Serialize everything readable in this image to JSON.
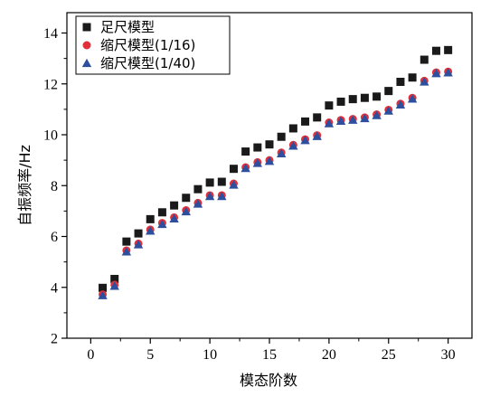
{
  "chart_data": {
    "type": "scatter",
    "xlabel": "模态阶数",
    "ylabel": "自振频率/Hz",
    "xlim": [
      -2,
      32
    ],
    "ylim": [
      2,
      14.8
    ],
    "xticks": [
      0,
      5,
      10,
      15,
      20,
      25,
      30
    ],
    "yticks": [
      2,
      4,
      6,
      8,
      10,
      12,
      14
    ],
    "grid": false,
    "legend_position": "top-left",
    "x": [
      1,
      2,
      3,
      4,
      5,
      6,
      7,
      8,
      9,
      10,
      11,
      12,
      13,
      14,
      15,
      16,
      17,
      18,
      19,
      20,
      21,
      22,
      23,
      24,
      25,
      26,
      27,
      28,
      29,
      30
    ],
    "series": [
      {
        "name": "足尺模型",
        "marker": "square",
        "color": "#1a1a1a",
        "values": [
          3.98,
          4.33,
          5.8,
          6.12,
          6.68,
          6.95,
          7.22,
          7.52,
          7.86,
          8.12,
          8.15,
          8.66,
          9.34,
          9.5,
          9.62,
          9.92,
          10.25,
          10.52,
          10.68,
          11.15,
          11.3,
          11.4,
          11.45,
          11.5,
          11.72,
          12.08,
          12.25,
          12.95,
          13.3,
          13.33
        ]
      },
      {
        "name": "缩尺模型(1/16)",
        "marker": "circle",
        "color": "#e0313b",
        "values": [
          3.72,
          4.1,
          5.45,
          5.72,
          6.27,
          6.53,
          6.75,
          7.03,
          7.32,
          7.62,
          7.62,
          8.08,
          8.72,
          8.92,
          9.0,
          9.3,
          9.6,
          9.82,
          9.98,
          10.48,
          10.58,
          10.62,
          10.68,
          10.8,
          10.98,
          11.22,
          11.45,
          12.12,
          12.45,
          12.48
        ]
      },
      {
        "name": "缩尺模型(1/40)",
        "marker": "triangle",
        "color": "#2d4f9e",
        "values": [
          3.68,
          4.05,
          5.4,
          5.68,
          6.22,
          6.48,
          6.7,
          6.98,
          7.28,
          7.58,
          7.58,
          8.03,
          8.68,
          8.88,
          8.96,
          9.26,
          9.56,
          9.78,
          9.94,
          10.44,
          10.54,
          10.58,
          10.64,
          10.76,
          10.94,
          11.18,
          11.41,
          12.08,
          12.41,
          12.44
        ]
      }
    ]
  }
}
